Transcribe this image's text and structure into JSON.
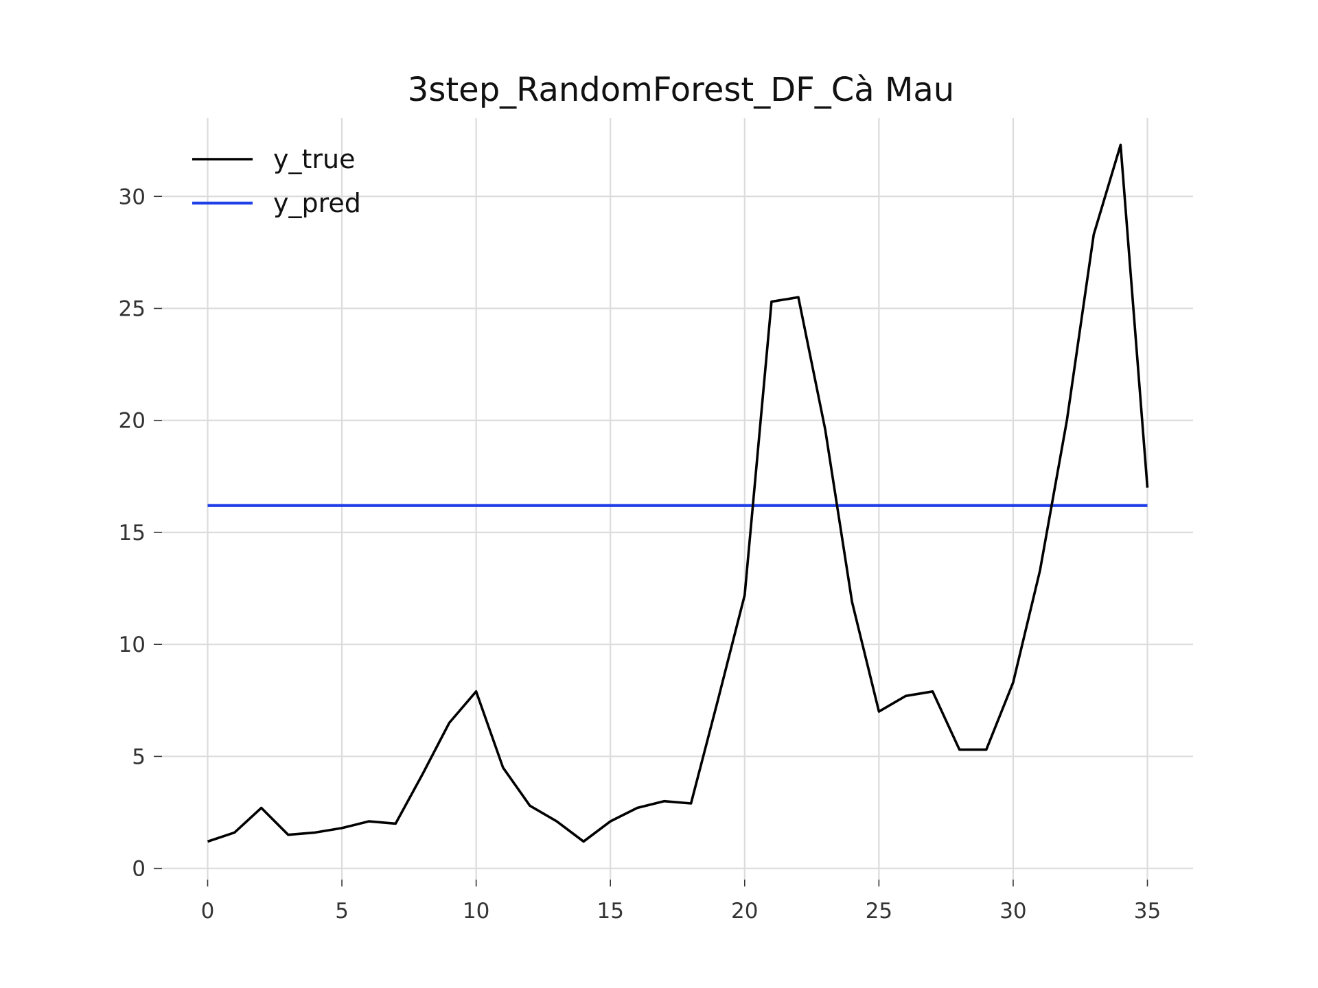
{
  "chart_data": {
    "type": "line",
    "title": "3step_RandomForest_DF_Cà Mau",
    "xlabel": "",
    "ylabel": "",
    "xlim": [
      -1.7,
      36.7
    ],
    "ylim": [
      -0.5,
      33.5
    ],
    "x_ticks": [
      0,
      5,
      10,
      15,
      20,
      25,
      30,
      35
    ],
    "y_ticks": [
      0,
      5,
      10,
      15,
      20,
      25,
      30
    ],
    "grid": true,
    "legend_position": "top-left",
    "series": [
      {
        "name": "y_true",
        "color": "#000000",
        "x": [
          0,
          1,
          2,
          3,
          4,
          5,
          6,
          7,
          8,
          9,
          10,
          11,
          12,
          13,
          14,
          15,
          16,
          17,
          18,
          19,
          20,
          21,
          22,
          23,
          24,
          25,
          26,
          27,
          28,
          29,
          30,
          31,
          32,
          33,
          34,
          35
        ],
        "values": [
          1.2,
          1.6,
          2.7,
          1.5,
          1.6,
          1.8,
          2.1,
          2.0,
          4.2,
          6.5,
          7.9,
          4.5,
          2.8,
          2.1,
          1.2,
          2.1,
          2.7,
          3.0,
          2.9,
          7.5,
          12.2,
          25.3,
          25.5,
          19.6,
          11.9,
          7.0,
          7.7,
          7.9,
          5.3,
          5.3,
          8.3,
          13.3,
          20.0,
          28.3,
          32.3,
          17.0
        ]
      },
      {
        "name": "y_pred",
        "color": "#1f3fe8",
        "x": [
          0,
          1,
          2,
          3,
          4,
          5,
          6,
          7,
          8,
          9,
          10,
          11,
          12,
          13,
          14,
          15,
          16,
          17,
          18,
          19,
          20,
          21,
          22,
          23,
          24,
          25,
          26,
          27,
          28,
          29,
          30,
          31,
          32,
          33,
          34,
          35
        ],
        "values": [
          16.2,
          16.2,
          16.2,
          16.2,
          16.2,
          16.2,
          16.2,
          16.2,
          16.2,
          16.2,
          16.2,
          16.2,
          16.2,
          16.2,
          16.2,
          16.2,
          16.2,
          16.2,
          16.2,
          16.2,
          16.2,
          16.2,
          16.2,
          16.2,
          16.2,
          16.2,
          16.2,
          16.2,
          16.2,
          16.2,
          16.2,
          16.2,
          16.2,
          16.2,
          16.2,
          16.2
        ]
      }
    ]
  }
}
